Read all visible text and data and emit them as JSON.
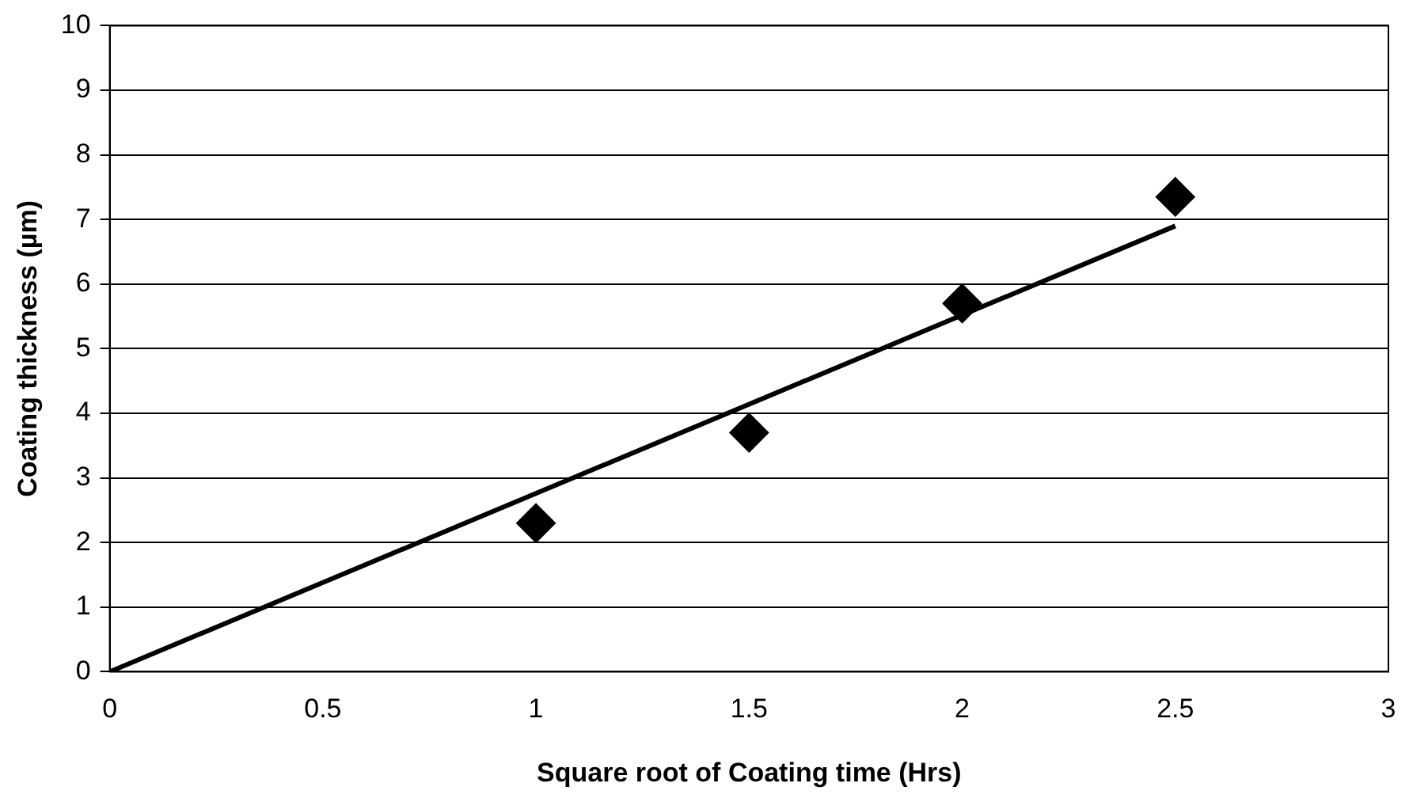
{
  "chart_data": {
    "type": "scatter",
    "xlabel": "Square root of Coating time (Hrs)",
    "ylabel": "Coating thickness (µm)",
    "xlim": [
      0,
      3
    ],
    "xticks": [
      0,
      0.5,
      1,
      1.5,
      2,
      2.5,
      3
    ],
    "ylim": [
      0,
      10
    ],
    "yticks": [
      0,
      1,
      2,
      3,
      4,
      5,
      6,
      7,
      8,
      9,
      10
    ],
    "grid": "y",
    "legend": false,
    "marker": "diamond",
    "series": [
      {
        "type": "scatter",
        "color": "#000000",
        "x": [
          1,
          1.5,
          2,
          2.5
        ],
        "values": [
          2.3,
          3.7,
          5.7,
          7.35
        ]
      },
      {
        "type": "line",
        "color": "#000000",
        "x": [
          0,
          2.5
        ],
        "values": [
          0,
          6.9
        ],
        "marker": "none",
        "line_style": "solid"
      }
    ]
  }
}
